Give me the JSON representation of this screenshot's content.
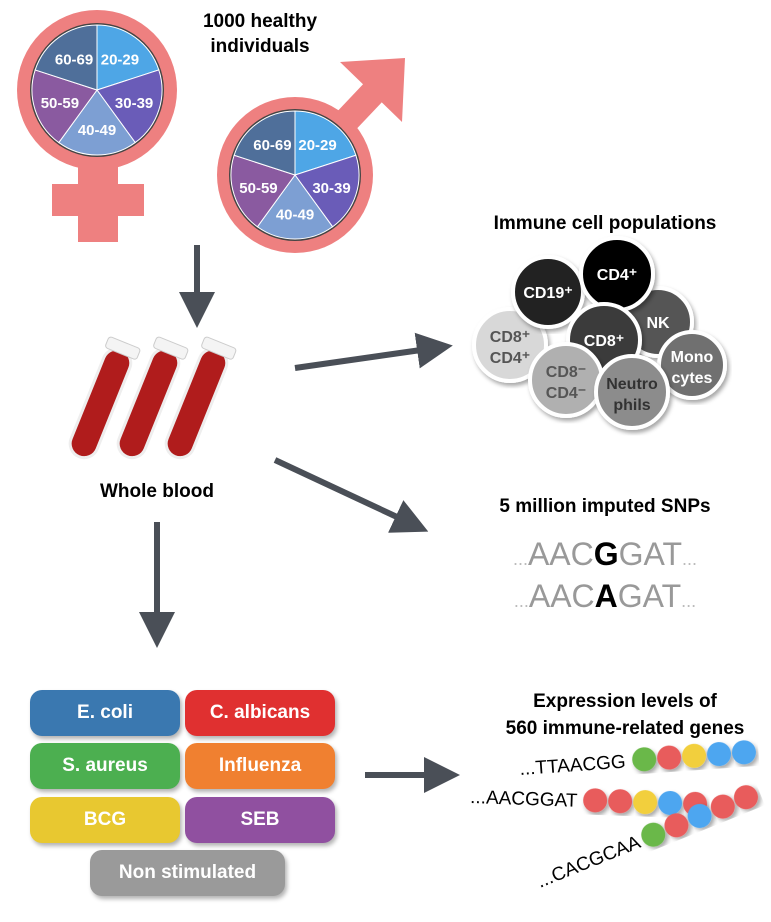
{
  "cohort": {
    "title_line1": "1000 healthy individuals",
    "title_line2": "individuals",
    "title1": "1000 healthy",
    "age_groups": [
      {
        "label": "20-29",
        "color": "#4ea6e6"
      },
      {
        "label": "30-39",
        "color": "#6a5cb8"
      },
      {
        "label": "40-49",
        "color": "#7d9fd3"
      },
      {
        "label": "50-59",
        "color": "#8a5aa0"
      },
      {
        "label": "60-69",
        "color": "#4f6f9a"
      }
    ],
    "symbol_color": "#ee8080"
  },
  "blood": {
    "label": "Whole blood"
  },
  "immune": {
    "title": "Immune cell populations",
    "cells": [
      {
        "l1": "CD8⁺",
        "l2": "CD4⁺",
        "color": "#d8d8d8",
        "text": "#555"
      },
      {
        "l1": "CD19⁺",
        "l2": "",
        "color": "#222",
        "text": "#fff"
      },
      {
        "l1": "NK",
        "l2": "",
        "color": "#555",
        "text": "#fff"
      },
      {
        "l1": "CD4⁺",
        "l2": "",
        "color": "#000",
        "text": "#fff"
      },
      {
        "l1": "CD8⁺",
        "l2": "",
        "color": "#3a3a3a",
        "text": "#fff"
      },
      {
        "l1": "CD8⁻",
        "l2": "CD4⁻",
        "color": "#b0b0b0",
        "text": "#555"
      },
      {
        "l1": "Mono",
        "l2": "cytes",
        "color": "#707070",
        "text": "#fff"
      },
      {
        "l1": "Neutro",
        "l2": "phils",
        "color": "#8c8c8c",
        "text": "#333"
      }
    ]
  },
  "snps": {
    "title": "5 million imputed SNPs",
    "seq1": {
      "pre": "AAC",
      "snp": "G",
      "post": "GAT"
    },
    "seq2": {
      "pre": "AAC",
      "snp": "A",
      "post": "GAT"
    },
    "dots": "..."
  },
  "stimuli": [
    {
      "label": "E. coli",
      "color": "#3a78b0"
    },
    {
      "label": "C. albicans",
      "color": "#e03030"
    },
    {
      "label": "S. aureus",
      "color": "#4caf50"
    },
    {
      "label": "Influenza",
      "color": "#f08030"
    },
    {
      "label": "BCG",
      "color": "#e8c830"
    },
    {
      "label": "SEB",
      "color": "#9050a0"
    },
    {
      "label": "Non stimulated",
      "color": "#9a9a9a"
    }
  ],
  "expression": {
    "title_line1": "Expression levels of",
    "title_line2": "560 immune-related genes",
    "rows": [
      {
        "seq": "...TTAACGG",
        "beads": [
          "#6ab84a",
          "#e85c5c",
          "#f2cf3c",
          "#4ea6f0",
          "#4ea6f0"
        ]
      },
      {
        "seq": "...AACGGAT",
        "beads": [
          "#e85c5c",
          "#e85c5c",
          "#f2cf3c",
          "#4ea6f0",
          "#e85c5c"
        ]
      },
      {
        "seq": "...CACGCAA",
        "beads": [
          "#6ab84a",
          "#e85c5c",
          "#4ea6f0",
          "#e85c5c",
          "#e85c5c"
        ]
      }
    ]
  }
}
